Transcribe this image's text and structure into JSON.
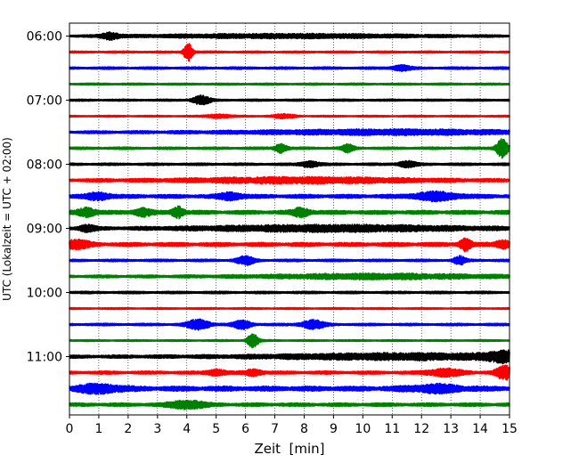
{
  "chart_data": {
    "type": "line",
    "title": "",
    "xlabel": "Zeit  [min]",
    "ylabel": "UTC (Lokalzeit = UTC + 02:00)",
    "xlim": [
      0,
      15
    ],
    "x_ticks": [
      "0",
      "1",
      "2",
      "3",
      "4",
      "5",
      "6",
      "7",
      "8",
      "9",
      "10",
      "11",
      "12",
      "13",
      "14",
      "15"
    ],
    "y_tick_labels": [
      "06:00",
      "07:00",
      "08:00",
      "09:00",
      "10:00",
      "11:00"
    ],
    "vertical_grid": true,
    "grid_style": "dotted",
    "traces_per_hour": 4,
    "minutes_per_trace": 15,
    "trace_colors": [
      "#000000",
      "#ff0000",
      "#0000ff",
      "#008000"
    ],
    "traces": [
      {
        "start": "06:00",
        "color": "#000000",
        "base_amplitude": 0.3,
        "events": [
          [
            1.4,
            1.1,
            0.3
          ],
          [
            7.5,
            0.6,
            5.0
          ]
        ]
      },
      {
        "start": "06:15",
        "color": "#ff0000",
        "base_amplitude": 0.3,
        "events": [
          [
            4.05,
            3.0,
            0.15
          ]
        ]
      },
      {
        "start": "06:30",
        "color": "#0000ff",
        "base_amplitude": 0.35,
        "events": [
          [
            11.3,
            0.9,
            0.3
          ]
        ]
      },
      {
        "start": "06:45",
        "color": "#008000",
        "base_amplitude": 0.3,
        "events": []
      },
      {
        "start": "07:00",
        "color": "#000000",
        "base_amplitude": 0.3,
        "events": [
          [
            4.5,
            1.5,
            0.3
          ]
        ]
      },
      {
        "start": "07:15",
        "color": "#ff0000",
        "base_amplitude": 0.25,
        "events": [
          [
            5.1,
            0.6,
            0.4
          ],
          [
            7.3,
            0.6,
            0.4
          ]
        ]
      },
      {
        "start": "07:30",
        "color": "#0000ff",
        "base_amplitude": 0.4,
        "events": [
          [
            11.0,
            0.7,
            5.0
          ]
        ]
      },
      {
        "start": "07:45",
        "color": "#008000",
        "base_amplitude": 0.35,
        "events": [
          [
            7.2,
            1.5,
            0.2
          ],
          [
            9.5,
            1.3,
            0.2
          ],
          [
            14.75,
            3.2,
            0.2
          ]
        ]
      },
      {
        "start": "08:00",
        "color": "#000000",
        "base_amplitude": 0.35,
        "events": [
          [
            8.2,
            1.0,
            0.3
          ],
          [
            11.5,
            1.0,
            0.3
          ]
        ]
      },
      {
        "start": "08:15",
        "color": "#ff0000",
        "base_amplitude": 0.45,
        "events": [
          [
            8.0,
            0.8,
            4.0
          ]
        ]
      },
      {
        "start": "08:30",
        "color": "#0000ff",
        "base_amplitude": 0.55,
        "events": [
          [
            1.0,
            1.1,
            0.4
          ],
          [
            5.5,
            1.1,
            0.4
          ],
          [
            12.5,
            1.2,
            0.8
          ]
        ]
      },
      {
        "start": "08:45",
        "color": "#008000",
        "base_amplitude": 0.55,
        "events": [
          [
            0.6,
            1.4,
            0.3
          ],
          [
            2.5,
            1.2,
            0.3
          ],
          [
            3.7,
            1.9,
            0.2
          ],
          [
            7.9,
            1.4,
            0.3
          ]
        ]
      },
      {
        "start": "09:00",
        "color": "#000000",
        "base_amplitude": 0.4,
        "events": [
          [
            0.6,
            1.0,
            0.3
          ],
          [
            9.0,
            1.0,
            5.0
          ]
        ]
      },
      {
        "start": "09:15",
        "color": "#ff0000",
        "base_amplitude": 0.55,
        "events": [
          [
            0.2,
            1.3,
            0.5
          ],
          [
            13.5,
            2.1,
            0.2
          ],
          [
            14.8,
            1.3,
            0.3
          ]
        ]
      },
      {
        "start": "09:30",
        "color": "#0000ff",
        "base_amplitude": 0.35,
        "events": [
          [
            6.0,
            1.4,
            0.3
          ],
          [
            13.3,
            1.4,
            0.2
          ]
        ]
      },
      {
        "start": "09:45",
        "color": "#008000",
        "base_amplitude": 0.4,
        "events": [
          [
            10.5,
            0.7,
            4.0
          ]
        ]
      },
      {
        "start": "10:00",
        "color": "#000000",
        "base_amplitude": 0.35,
        "events": []
      },
      {
        "start": "10:15",
        "color": "#ff0000",
        "base_amplitude": 0.25,
        "events": []
      },
      {
        "start": "10:30",
        "color": "#0000ff",
        "base_amplitude": 0.35,
        "events": [
          [
            4.4,
            1.6,
            0.4
          ],
          [
            5.9,
            1.4,
            0.3
          ],
          [
            8.3,
            1.4,
            0.4
          ]
        ]
      },
      {
        "start": "10:45",
        "color": "#008000",
        "base_amplitude": 0.25,
        "events": [
          [
            6.25,
            2.2,
            0.2
          ]
        ]
      },
      {
        "start": "11:00",
        "color": "#000000",
        "base_amplitude": 0.45,
        "events": [
          [
            11.5,
            0.9,
            5.0
          ],
          [
            14.8,
            1.4,
            0.6
          ]
        ]
      },
      {
        "start": "11:15",
        "color": "#ff0000",
        "base_amplitude": 0.45,
        "events": [
          [
            5.0,
            1.0,
            0.3
          ],
          [
            6.3,
            1.0,
            0.3
          ],
          [
            12.8,
            1.2,
            0.6
          ],
          [
            14.85,
            2.3,
            0.3
          ]
        ]
      },
      {
        "start": "11:30",
        "color": "#0000ff",
        "base_amplitude": 0.7,
        "events": [
          [
            1.0,
            1.2,
            0.8
          ],
          [
            12.5,
            1.0,
            1.0
          ]
        ]
      },
      {
        "start": "11:45",
        "color": "#008000",
        "base_amplitude": 0.5,
        "events": [
          [
            4.0,
            1.3,
            0.6
          ]
        ]
      }
    ]
  }
}
